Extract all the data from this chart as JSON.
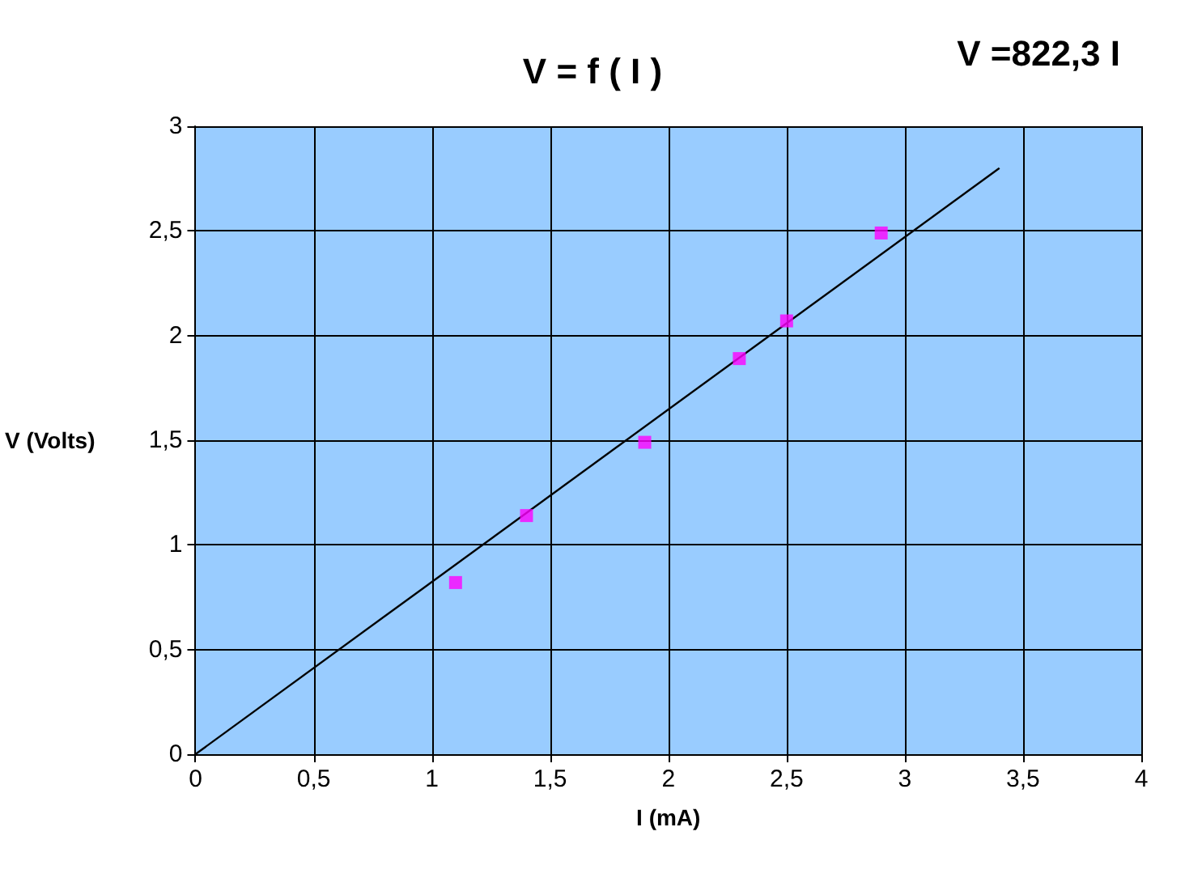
{
  "chart_data": {
    "type": "scatter",
    "title": "V = f ( I )",
    "xlabel": "I (mA)",
    "ylabel": "V (Volts)",
    "annotations": [
      "V =822,3 I"
    ],
    "x": [
      1.1,
      1.4,
      1.9,
      2.3,
      2.5,
      2.9
    ],
    "series": [
      {
        "color": "#ff00ff",
        "marker": "square",
        "values": [
          0.82,
          1.14,
          1.49,
          1.89,
          2.07,
          2.49
        ]
      },
      {
        "type": "line",
        "color": "#000000",
        "marker": "none",
        "x": [
          0,
          3.4
        ],
        "values": [
          0,
          2.8
        ]
      }
    ],
    "xlim": [
      0,
      4
    ],
    "xticks": [
      0,
      {
        "value": 0.5,
        "label": "0,5"
      },
      1,
      {
        "value": 1.5,
        "label": "1,5"
      },
      2,
      {
        "value": 2.5,
        "label": "2,5"
      },
      3,
      {
        "value": 3.5,
        "label": "3,5"
      },
      4
    ],
    "ylim": [
      0,
      3
    ],
    "yticks": [
      0,
      {
        "value": 0.5,
        "label": "0,5"
      },
      1,
      {
        "value": 1.5,
        "label": "1,5"
      },
      2,
      {
        "value": 2.5,
        "label": "2,5"
      },
      3
    ],
    "grid": true
  }
}
